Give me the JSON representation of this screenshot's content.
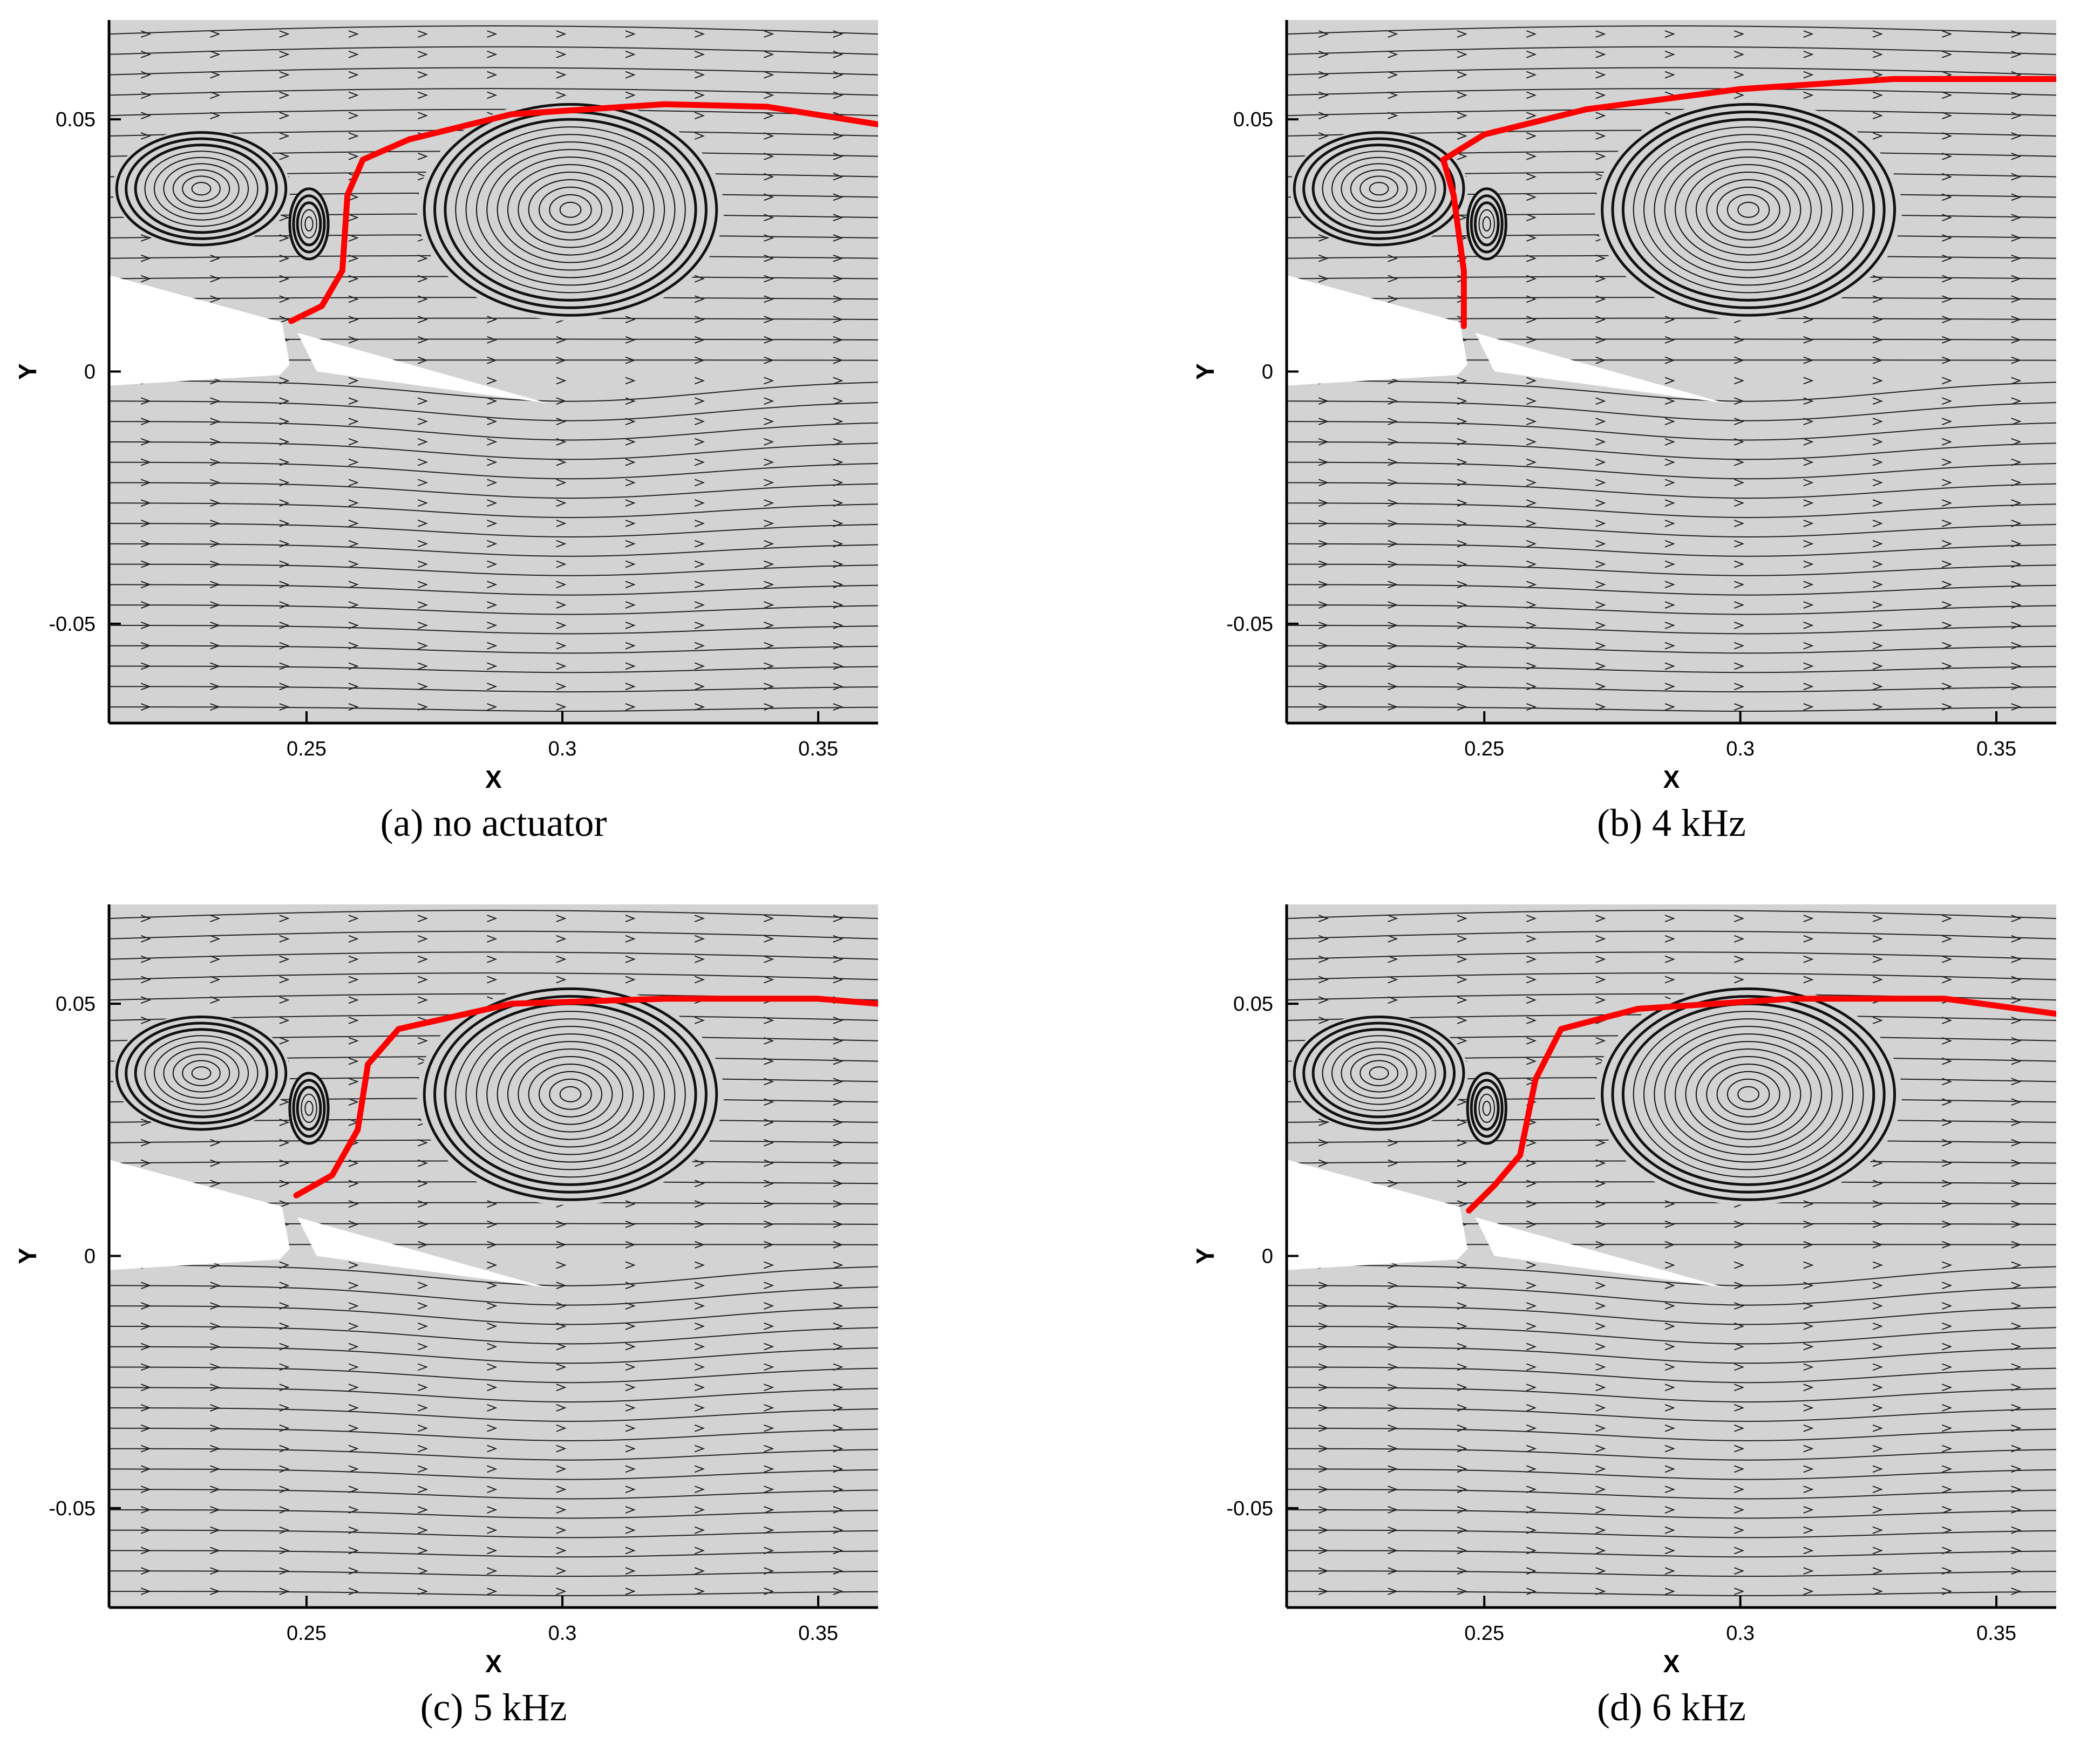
{
  "chart_data": [
    {
      "type": "streamline",
      "caption": "(a) no actuator",
      "xlabel": "X",
      "ylabel": "Y",
      "xlim": [
        0.2114,
        0.3617
      ],
      "ylim": [
        -0.0697,
        0.0697
      ],
      "xticks": [
        0.25,
        0.3,
        0.35
      ],
      "yticks": [
        -0.05,
        0,
        0.05
      ],
      "series": [
        {
          "color": "#ff0000",
          "x": [
            0.247,
            0.253,
            0.257,
            0.258,
            0.261,
            0.27,
            0.29,
            0.32,
            0.34,
            0.3617
          ],
          "y": [
            0.01,
            0.013,
            0.02,
            0.035,
            0.042,
            0.046,
            0.051,
            0.053,
            0.0525,
            0.049
          ]
        }
      ]
    },
    {
      "type": "streamline",
      "caption": "(b) 4 kHz",
      "xlabel": "X",
      "ylabel": "Y",
      "xlim": [
        0.2114,
        0.3617
      ],
      "ylim": [
        -0.0697,
        0.0697
      ],
      "xticks": [
        0.25,
        0.3,
        0.35
      ],
      "yticks": [
        -0.05,
        0,
        0.05
      ],
      "series": [
        {
          "color": "#ff0000",
          "x": [
            0.246,
            0.246,
            0.244,
            0.242,
            0.25,
            0.27,
            0.3,
            0.33,
            0.3617
          ],
          "y": [
            0.009,
            0.02,
            0.035,
            0.042,
            0.047,
            0.052,
            0.056,
            0.058,
            0.058
          ]
        }
      ]
    },
    {
      "type": "streamline",
      "caption": "(c) 5 kHz",
      "xlabel": "X",
      "ylabel": "Y",
      "xlim": [
        0.2114,
        0.3617
      ],
      "ylim": [
        -0.0697,
        0.0697
      ],
      "xticks": [
        0.25,
        0.3,
        0.35
      ],
      "yticks": [
        -0.05,
        0,
        0.05
      ],
      "series": [
        {
          "color": "#ff0000",
          "x": [
            0.248,
            0.255,
            0.26,
            0.262,
            0.268,
            0.29,
            0.32,
            0.35,
            0.3617
          ],
          "y": [
            0.012,
            0.016,
            0.025,
            0.038,
            0.045,
            0.05,
            0.051,
            0.051,
            0.05
          ]
        }
      ]
    },
    {
      "type": "streamline",
      "caption": "(d) 6 kHz",
      "xlabel": "X",
      "ylabel": "Y",
      "xlim": [
        0.2114,
        0.3617
      ],
      "ylim": [
        -0.0697,
        0.0697
      ],
      "xticks": [
        0.25,
        0.3,
        0.35
      ],
      "yticks": [
        -0.05,
        0,
        0.05
      ],
      "series": [
        {
          "color": "#ff0000",
          "x": [
            0.247,
            0.252,
            0.257,
            0.26,
            0.265,
            0.28,
            0.31,
            0.34,
            0.3617
          ],
          "y": [
            0.009,
            0.014,
            0.02,
            0.035,
            0.045,
            0.049,
            0.051,
            0.051,
            0.048
          ]
        }
      ]
    }
  ]
}
